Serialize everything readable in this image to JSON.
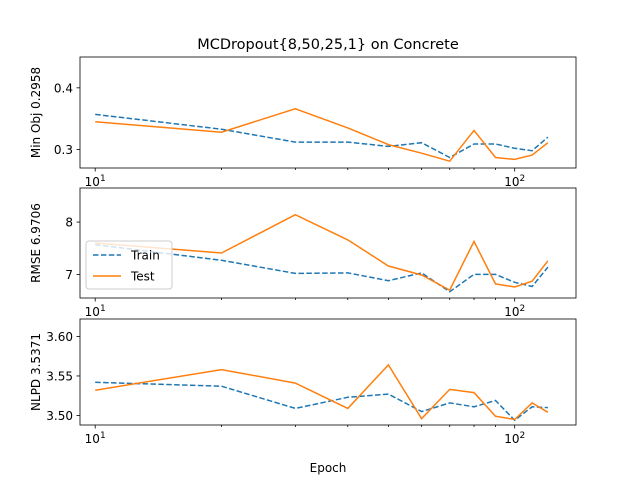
{
  "chart_data": {
    "type": "line",
    "title": "MCDropout{8,50,25,1} on Concrete",
    "xlabel": "Epoch",
    "xscale": "log",
    "xlim": [
      9.2,
      140
    ],
    "x": [
      10,
      20,
      30,
      40,
      50,
      60,
      70,
      80,
      90,
      100,
      110,
      120,
      130
    ],
    "x_tick_labels": [
      "10^1",
      "10^2"
    ],
    "legend": {
      "location": "lower left of middle panel",
      "entries": [
        "Train",
        "Test"
      ]
    },
    "colors": {
      "Train": "#1f77b4",
      "Test": "#ff7f0e"
    },
    "panels": [
      {
        "ylabel": "Min Obj 0.2958",
        "ylim": [
          0.27,
          0.45
        ],
        "yticks": [
          "0.3",
          "0.4"
        ],
        "ytick_values": [
          0.3,
          0.4
        ],
        "series": [
          {
            "name": "Train",
            "style": "dashed",
            "values": [
              0.357,
              0.333,
              0.312,
              0.312,
              0.305,
              0.311,
              0.287,
              0.309,
              0.309,
              0.302,
              0.298,
              0.32,
              null
            ]
          },
          {
            "name": "Test",
            "style": "solid",
            "values": [
              0.345,
              0.328,
              0.366,
              0.335,
              0.308,
              0.294,
              0.281,
              0.331,
              0.287,
              0.284,
              0.291,
              0.311,
              null
            ]
          }
        ]
      },
      {
        "ylabel": "RMSE 6.9706",
        "ylim": [
          6.55,
          8.65
        ],
        "yticks": [
          "7",
          "8"
        ],
        "ytick_values": [
          7,
          8
        ],
        "series": [
          {
            "name": "Train",
            "style": "dashed",
            "values": [
              7.57,
              7.27,
              7.02,
              7.03,
              6.88,
              7.03,
              6.67,
              7.0,
              7.0,
              6.85,
              6.77,
              7.14,
              null
            ]
          },
          {
            "name": "Test",
            "style": "solid",
            "values": [
              7.6,
              7.41,
              8.14,
              7.66,
              7.16,
              6.99,
              6.7,
              7.63,
              6.82,
              6.76,
              6.87,
              7.26,
              null
            ]
          }
        ]
      },
      {
        "ylabel": "NLPD 3.5371",
        "ylim": [
          3.488,
          3.622
        ],
        "yticks": [
          "3.50",
          "3.55",
          "3.60"
        ],
        "ytick_values": [
          3.5,
          3.55,
          3.6
        ],
        "series": [
          {
            "name": "Train",
            "style": "dashed",
            "values": [
              3.542,
              3.537,
              3.509,
              3.523,
              3.527,
              3.505,
              3.516,
              3.511,
              3.519,
              3.494,
              3.511,
              3.51,
              null
            ]
          },
          {
            "name": "Test",
            "style": "solid",
            "values": [
              3.532,
              3.558,
              3.541,
              3.509,
              3.564,
              3.496,
              3.533,
              3.529,
              3.499,
              3.495,
              3.516,
              3.504,
              null
            ]
          }
        ]
      }
    ]
  }
}
